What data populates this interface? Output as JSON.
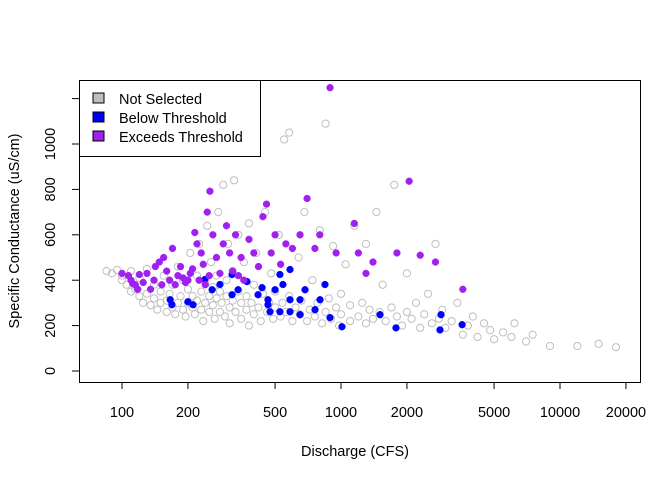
{
  "chart_data": {
    "type": "scatter",
    "xlabel": "Discharge (CFS)",
    "ylabel": "Specific Conductance (uS/cm)",
    "x_scale": "log",
    "xlim": [
      64,
      23000
    ],
    "ylim": [
      -49,
      1290
    ],
    "x_ticks": [
      100,
      200,
      500,
      1000,
      2000,
      5000,
      10000,
      20000
    ],
    "x_tick_labels": [
      "100",
      "200",
      "500",
      "1000",
      "2000",
      "5000",
      "10000",
      "20000"
    ],
    "y_ticks": [
      0,
      200,
      400,
      600,
      800,
      1000,
      1200
    ],
    "y_tick_labels": [
      "0",
      "200",
      "400",
      "600",
      "800",
      "1000",
      ""
    ],
    "grid": false,
    "legend": {
      "placement": "top-left",
      "entries": [
        {
          "label": "Not Selected",
          "color": "#BEBEBE"
        },
        {
          "label": "Below Threshold",
          "color": "#0000FF"
        },
        {
          "label": "Exceeds Threshold",
          "color": "#A020F0"
        }
      ]
    },
    "series": [
      {
        "name": "Not Selected",
        "color": "#BEBEBE",
        "marker": "open-circle",
        "points": [
          [
            85,
            440
          ],
          [
            90,
            430
          ],
          [
            95,
            445
          ],
          [
            100,
            420
          ],
          [
            100,
            400
          ],
          [
            105,
            380
          ],
          [
            110,
            350
          ],
          [
            110,
            440
          ],
          [
            115,
            360
          ],
          [
            120,
            330
          ],
          [
            120,
            410
          ],
          [
            125,
            300
          ],
          [
            130,
            340
          ],
          [
            130,
            450
          ],
          [
            135,
            290
          ],
          [
            140,
            320
          ],
          [
            140,
            380
          ],
          [
            145,
            270
          ],
          [
            150,
            300
          ],
          [
            150,
            350
          ],
          [
            155,
            420
          ],
          [
            160,
            260
          ],
          [
            160,
            310
          ],
          [
            165,
            340
          ],
          [
            170,
            280
          ],
          [
            170,
            380
          ],
          [
            175,
            250
          ],
          [
            180,
            300
          ],
          [
            180,
            460
          ],
          [
            185,
            330
          ],
          [
            190,
            270
          ],
          [
            190,
            400
          ],
          [
            195,
            240
          ],
          [
            200,
            300
          ],
          [
            200,
            360
          ],
          [
            205,
            520
          ],
          [
            210,
            280
          ],
          [
            210,
            330
          ],
          [
            215,
            250
          ],
          [
            220,
            310
          ],
          [
            220,
            420
          ],
          [
            225,
            560
          ],
          [
            230,
            270
          ],
          [
            230,
            350
          ],
          [
            235,
            220
          ],
          [
            240,
            300
          ],
          [
            240,
            390
          ],
          [
            245,
            640
          ],
          [
            250,
            330
          ],
          [
            250,
            260
          ],
          [
            255,
            480
          ],
          [
            260,
            290
          ],
          [
            260,
            370
          ],
          [
            265,
            230
          ],
          [
            270,
            320
          ],
          [
            270,
            420
          ],
          [
            275,
            700
          ],
          [
            280,
            260
          ],
          [
            280,
            350
          ],
          [
            285,
            300
          ],
          [
            290,
            820
          ],
          [
            295,
            240
          ],
          [
            300,
            330
          ],
          [
            300,
            400
          ],
          [
            305,
            560
          ],
          [
            310,
            280
          ],
          [
            310,
            210
          ],
          [
            320,
            310
          ],
          [
            320,
            440
          ],
          [
            325,
            840
          ],
          [
            330,
            260
          ],
          [
            340,
            350
          ],
          [
            340,
            600
          ],
          [
            350,
            230
          ],
          [
            350,
            300
          ],
          [
            360,
            480
          ],
          [
            370,
            270
          ],
          [
            370,
            330
          ],
          [
            380,
            200
          ],
          [
            380,
            650
          ],
          [
            390,
            300
          ],
          [
            400,
            250
          ],
          [
            400,
            380
          ],
          [
            410,
            520
          ],
          [
            420,
            280
          ],
          [
            430,
            220
          ],
          [
            440,
            340
          ],
          [
            450,
            700
          ],
          [
            460,
            260
          ],
          [
            470,
            300
          ],
          [
            480,
            430
          ],
          [
            490,
            230
          ],
          [
            500,
            280
          ],
          [
            500,
            350
          ],
          [
            520,
            600
          ],
          [
            530,
            240
          ],
          [
            540,
            300
          ],
          [
            550,
            1020
          ],
          [
            560,
            260
          ],
          [
            580,
            1050
          ],
          [
            580,
            330
          ],
          [
            600,
            220
          ],
          [
            620,
            280
          ],
          [
            640,
            500
          ],
          [
            650,
            250
          ],
          [
            660,
            310
          ],
          [
            680,
            700
          ],
          [
            700,
            220
          ],
          [
            720,
            270
          ],
          [
            740,
            400
          ],
          [
            760,
            240
          ],
          [
            780,
            300
          ],
          [
            800,
            620
          ],
          [
            820,
            210
          ],
          [
            850,
            1090
          ],
          [
            850,
            260
          ],
          [
            880,
            320
          ],
          [
            900,
            230
          ],
          [
            920,
            550
          ],
          [
            950,
            280
          ],
          [
            980,
            200
          ],
          [
            1000,
            250
          ],
          [
            1000,
            340
          ],
          [
            1050,
            470
          ],
          [
            1100,
            220
          ],
          [
            1100,
            290
          ],
          [
            1150,
            640
          ],
          [
            1200,
            240
          ],
          [
            1250,
            300
          ],
          [
            1300,
            210
          ],
          [
            1300,
            560
          ],
          [
            1350,
            270
          ],
          [
            1400,
            230
          ],
          [
            1450,
            700
          ],
          [
            1500,
            260
          ],
          [
            1550,
            380
          ],
          [
            1600,
            220
          ],
          [
            1700,
            280
          ],
          [
            1750,
            820
          ],
          [
            1800,
            240
          ],
          [
            1900,
            200
          ],
          [
            2000,
            260
          ],
          [
            2000,
            430
          ],
          [
            2100,
            230
          ],
          [
            2200,
            300
          ],
          [
            2300,
            190
          ],
          [
            2400,
            250
          ],
          [
            2500,
            340
          ],
          [
            2600,
            210
          ],
          [
            2700,
            560
          ],
          [
            2800,
            230
          ],
          [
            2900,
            270
          ],
          [
            3000,
            190
          ],
          [
            3200,
            220
          ],
          [
            3400,
            300
          ],
          [
            3600,
            160
          ],
          [
            3800,
            200
          ],
          [
            4000,
            240
          ],
          [
            4200,
            150
          ],
          [
            4500,
            210
          ],
          [
            4800,
            180
          ],
          [
            5000,
            140
          ],
          [
            5500,
            170
          ],
          [
            6000,
            150
          ],
          [
            6200,
            210
          ],
          [
            7000,
            130
          ],
          [
            7500,
            160
          ],
          [
            9000,
            110
          ],
          [
            12000,
            110
          ],
          [
            15000,
            120
          ],
          [
            18000,
            105
          ]
        ]
      },
      {
        "name": "Below Threshold",
        "color": "#0000FF",
        "marker": "filled-circle",
        "points": [
          [
            166,
            314
          ],
          [
            169,
            292
          ],
          [
            200,
            305
          ],
          [
            211,
            292
          ],
          [
            239,
            403
          ],
          [
            258,
            358
          ],
          [
            280,
            381
          ],
          [
            318,
            425
          ],
          [
            318,
            336
          ],
          [
            339,
            358
          ],
          [
            372,
            394
          ],
          [
            418,
            336
          ],
          [
            436,
            367
          ],
          [
            464,
            314
          ],
          [
            474,
            261
          ],
          [
            500,
            358
          ],
          [
            526,
            425
          ],
          [
            543,
            381
          ],
          [
            585,
            314
          ],
          [
            585,
            447
          ],
          [
            650,
            314
          ],
          [
            685,
            358
          ],
          [
            761,
            270
          ],
          [
            802,
            314
          ],
          [
            845,
            381
          ],
          [
            891,
            235
          ],
          [
            1010,
            195
          ],
          [
            1507,
            248
          ],
          [
            1782,
            190
          ],
          [
            2831,
            181
          ],
          [
            2863,
            248
          ],
          [
            3573,
            204
          ],
          [
            526,
            261
          ],
          [
            585,
            261
          ],
          [
            650,
            248
          ],
          [
            464,
            292
          ]
        ]
      },
      {
        "name": "Exceeds Threshold",
        "color": "#A020F0",
        "marker": "filled-circle",
        "points": [
          [
            100,
            430
          ],
          [
            107,
            420
          ],
          [
            110,
            400
          ],
          [
            112,
            385
          ],
          [
            115,
            380
          ],
          [
            118,
            360
          ],
          [
            120,
            425
          ],
          [
            125,
            390
          ],
          [
            130,
            430
          ],
          [
            135,
            360
          ],
          [
            140,
            400
          ],
          [
            142,
            460
          ],
          [
            148,
            480
          ],
          [
            152,
            380
          ],
          [
            155,
            500
          ],
          [
            160,
            440
          ],
          [
            165,
            400
          ],
          [
            170,
            540
          ],
          [
            175,
            380
          ],
          [
            180,
            420
          ],
          [
            185,
            460
          ],
          [
            190,
            410
          ],
          [
            195,
            390
          ],
          [
            200,
            400
          ],
          [
            205,
            430
          ],
          [
            210,
            450
          ],
          [
            215,
            610
          ],
          [
            220,
            560
          ],
          [
            225,
            400
          ],
          [
            230,
            520
          ],
          [
            235,
            470
          ],
          [
            240,
            380
          ],
          [
            245,
            700
          ],
          [
            250,
            420
          ],
          [
            252,
            792
          ],
          [
            260,
            600
          ],
          [
            270,
            500
          ],
          [
            280,
            430
          ],
          [
            290,
            560
          ],
          [
            300,
            640
          ],
          [
            310,
            520
          ],
          [
            320,
            440
          ],
          [
            330,
            600
          ],
          [
            340,
            420
          ],
          [
            350,
            500
          ],
          [
            360,
            400
          ],
          [
            380,
            580
          ],
          [
            400,
            520
          ],
          [
            420,
            460
          ],
          [
            440,
            680
          ],
          [
            457,
            735
          ],
          [
            480,
            520
          ],
          [
            500,
            600
          ],
          [
            530,
            470
          ],
          [
            560,
            560
          ],
          [
            600,
            540
          ],
          [
            650,
            600
          ],
          [
            700,
            760
          ],
          [
            760,
            540
          ],
          [
            800,
            600
          ],
          [
            891,
            1248
          ],
          [
            950,
            520
          ],
          [
            1150,
            650
          ],
          [
            1200,
            520
          ],
          [
            1300,
            430
          ],
          [
            1400,
            480
          ],
          [
            1800,
            520
          ],
          [
            2047,
            836
          ],
          [
            2300,
            510
          ],
          [
            2700,
            480
          ],
          [
            3600,
            360
          ]
        ]
      }
    ]
  }
}
